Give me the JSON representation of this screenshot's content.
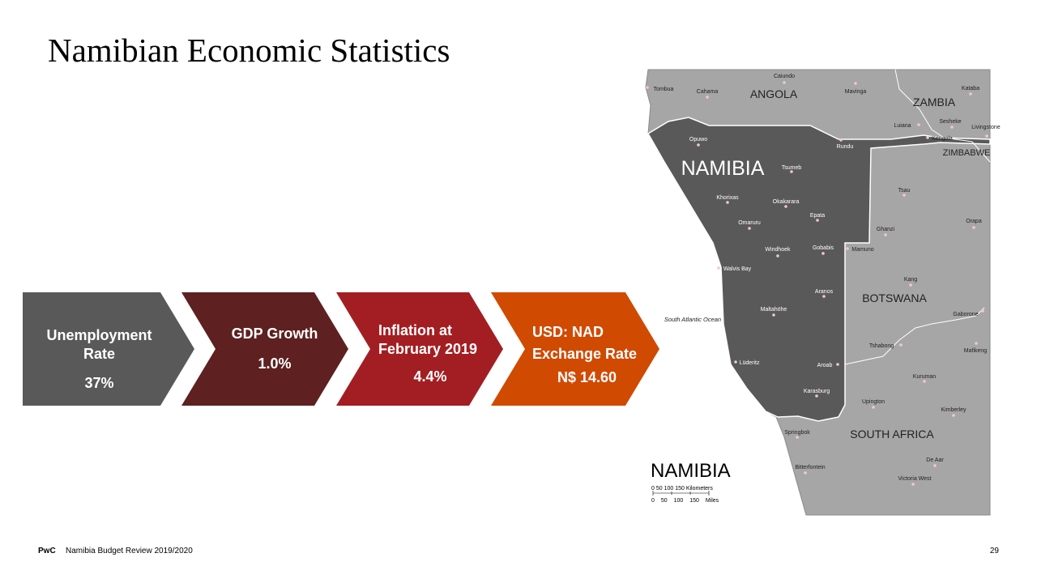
{
  "title": "Namibian Economic Statistics",
  "stats": [
    {
      "label": "Unemployment Rate",
      "value": "37%"
    },
    {
      "label": "GDP Growth",
      "value": "1.0%"
    },
    {
      "label": "Inflation at February 2019",
      "value": "4.4%"
    },
    {
      "label": "USD: NAD Exchange Rate",
      "value": "N$ 14.60"
    }
  ],
  "map": {
    "countries": [
      "ANGOLA",
      "ZAMBIA",
      "ZIMBABWE",
      "NAMIBIA",
      "BOTSWANA",
      "SOUTH AFRICA"
    ],
    "ocean": "South Atlantic Ocean",
    "places": [
      {
        "name": "Caiundo"
      },
      {
        "name": "Tombua"
      },
      {
        "name": "Cahama"
      },
      {
        "name": "Mavinga"
      },
      {
        "name": "Kataba"
      },
      {
        "name": "Luiana"
      },
      {
        "name": "Sesheke"
      },
      {
        "name": "Livingstone"
      },
      {
        "name": "Opuwo"
      },
      {
        "name": "Rundu"
      },
      {
        "name": "Kongola"
      },
      {
        "name": "Tsumeb"
      },
      {
        "name": "Tsau"
      },
      {
        "name": "Khorixas"
      },
      {
        "name": "Okakarara"
      },
      {
        "name": "Epata"
      },
      {
        "name": "Orapa"
      },
      {
        "name": "Omaruru"
      },
      {
        "name": "Ghanzi"
      },
      {
        "name": "Windhoek"
      },
      {
        "name": "Gobabis"
      },
      {
        "name": "Mamuno"
      },
      {
        "name": "Walvis Bay"
      },
      {
        "name": "Kang"
      },
      {
        "name": "Aranos"
      },
      {
        "name": "Maltahöhe"
      },
      {
        "name": "Gaborone"
      },
      {
        "name": "Tshabong"
      },
      {
        "name": "Mafikeng"
      },
      {
        "name": "Lüderitz"
      },
      {
        "name": "Aroab"
      },
      {
        "name": "Kuruman"
      },
      {
        "name": "Karasburg"
      },
      {
        "name": "Upington"
      },
      {
        "name": "Kimberley"
      },
      {
        "name": "Springbok"
      },
      {
        "name": "De Aar"
      },
      {
        "name": "Bitterfontein"
      },
      {
        "name": "Victoria West"
      }
    ],
    "legend_title": "NAMIBIA",
    "scale_km": "0 50 100 150 Kilometers",
    "scale_mi": "0 50 100 150 Miles"
  },
  "footer": {
    "brand": "PwC",
    "text": "Namibia Budget Review 2019/2020",
    "page": "29"
  }
}
